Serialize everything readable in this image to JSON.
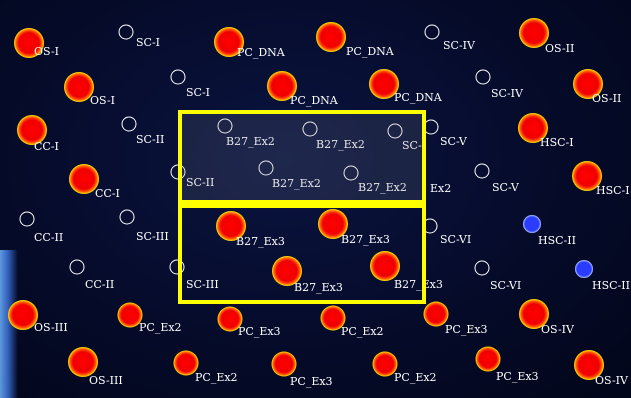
{
  "labels": {
    "r1": [
      "OS-I",
      "SC-I",
      "PC_DNA",
      "PC_DNA",
      "SC-IV",
      "OS-II"
    ],
    "r2": [
      "OS-I",
      "SC-I",
      "PC_DNA",
      "PC_DNA",
      "SC-IV",
      "OS-II"
    ],
    "r3": [
      "CC-I",
      "SC-II",
      "B27_Ex2",
      "B27_Ex2",
      "SC-",
      "SC-V",
      "HSC-I"
    ],
    "r4": [
      "CC-I",
      "SC-II",
      "B27_Ex2",
      "B27_Ex2",
      "Ex2",
      "SC-V",
      "HSC-I"
    ],
    "r5": [
      "CC-II",
      "SC-III",
      "B27_Ex3",
      "B27_Ex3",
      "SC-VI",
      "HSC-II"
    ],
    "r6": [
      "CC-II",
      "SC-III",
      "B27_Ex3",
      "B27_Ex3",
      "SC-VI",
      "HSC-II"
    ],
    "r7": [
      "OS-III",
      "PC_Ex2",
      "PC_Ex3",
      "PC_Ex2",
      "PC_Ex3",
      "OS-IV"
    ],
    "r8": [
      "OS-III",
      "PC_Ex2",
      "PC_Ex3",
      "PC_Ex2",
      "PC_Ex3",
      "OS-IV"
    ]
  },
  "colors": {
    "highlight": "#ffff00",
    "background": "#050a28",
    "label": "#ffffff"
  }
}
